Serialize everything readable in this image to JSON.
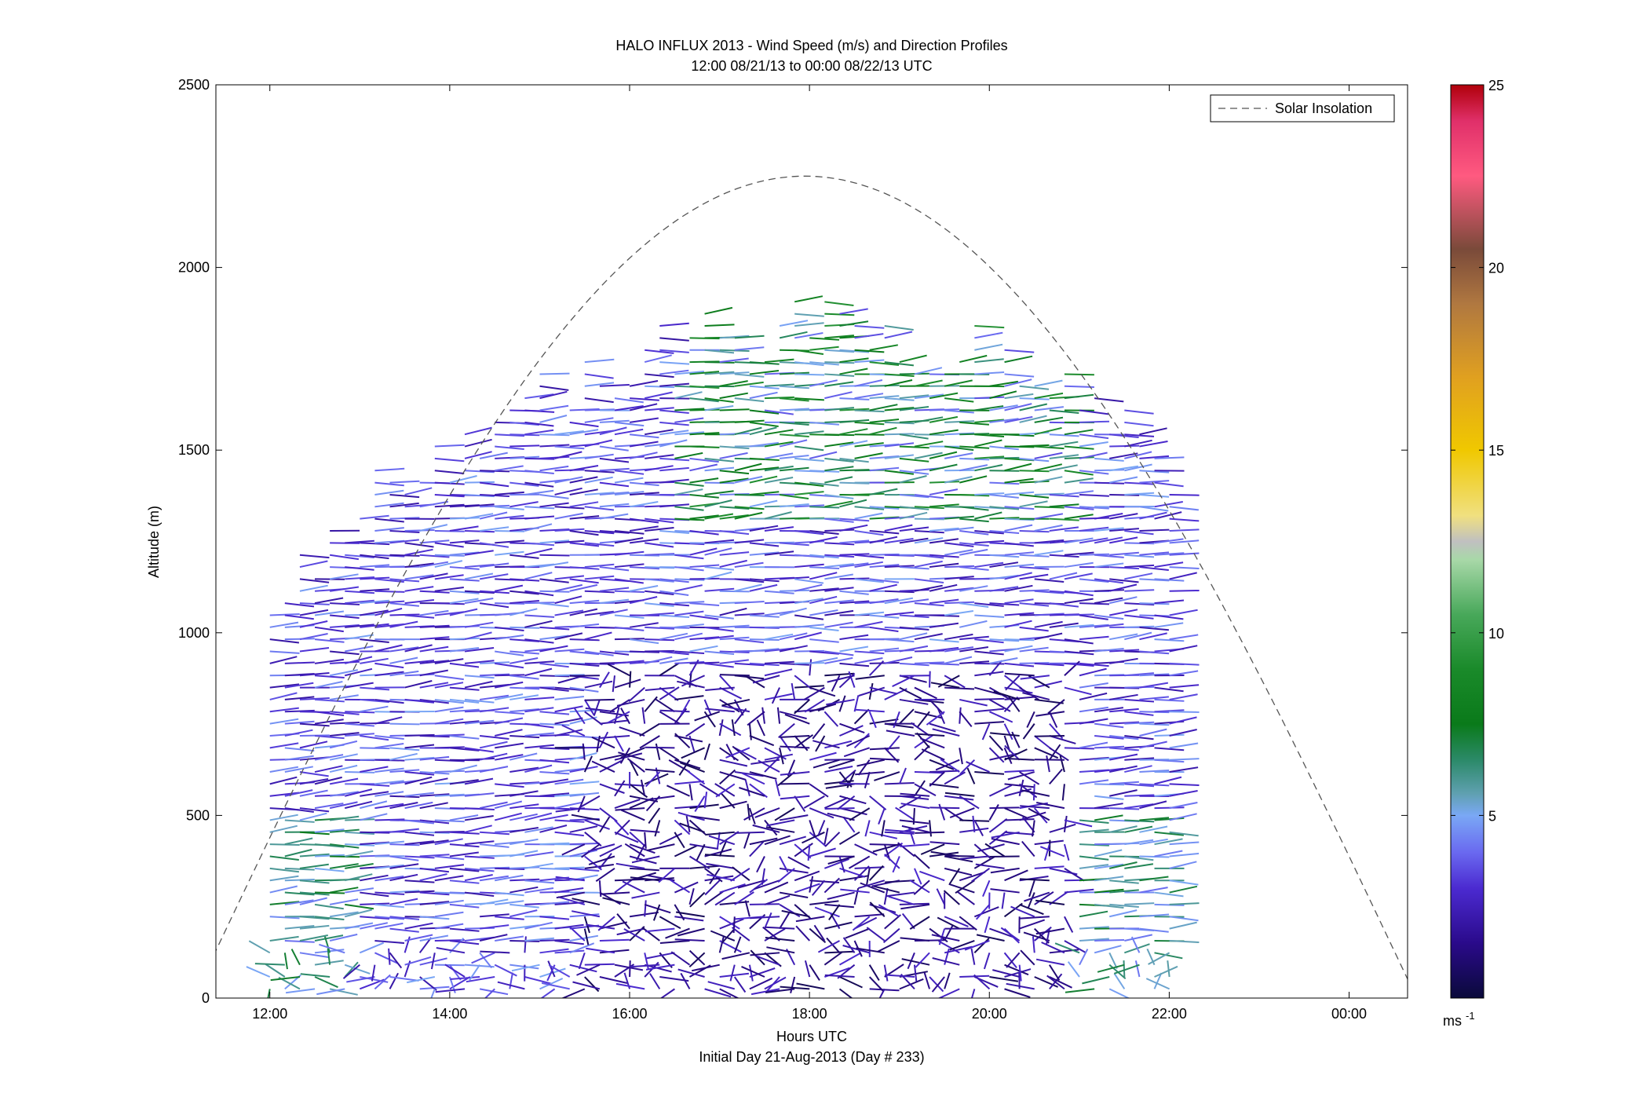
{
  "title_line1": "HALO INFLUX 2013 - Wind Speed (m/s) and Direction Profiles",
  "title_line2": "12:00 08/21/13 to 00:00 08/22/13  UTC",
  "xlabel": "Hours UTC",
  "footer": "Initial Day 21-Aug-2013 (Day # 233)",
  "ylabel": "Altitude (m)",
  "legend_label": "Solar Insolation",
  "colorbar_unit": "ms",
  "colorbar_unit_exp": "-1",
  "colors": {
    "insolation_line": "#555555",
    "axes": "#000000"
  },
  "chart_data": {
    "type": "quiver",
    "title": "HALO INFLUX 2013 - Wind Speed (m/s) and Direction Profiles",
    "subtitle": "12:00 08/21/13 to 00:00 08/22/13  UTC",
    "xlabel": "Hours UTC",
    "ylabel": "Altitude (m)",
    "xlim_hours": [
      11.4,
      24.65
    ],
    "ylim": [
      0,
      2500
    ],
    "x_ticks": [
      {
        "hour": 12,
        "label": "12:00"
      },
      {
        "hour": 14,
        "label": "14:00"
      },
      {
        "hour": 16,
        "label": "16:00"
      },
      {
        "hour": 18,
        "label": "18:00"
      },
      {
        "hour": 20,
        "label": "20:00"
      },
      {
        "hour": 22,
        "label": "22:00"
      },
      {
        "hour": 24,
        "label": "00:00"
      }
    ],
    "y_ticks": [
      0,
      500,
      1000,
      1500,
      2000,
      2500
    ],
    "grid": false,
    "legend": {
      "position": "top-right",
      "entries": [
        "Solar Insolation"
      ]
    },
    "colorbar": {
      "min": 0,
      "max": 25,
      "unit": "ms-1",
      "ticks": [
        5,
        10,
        15,
        20,
        25
      ],
      "stops": [
        {
          "v": 0,
          "c": "#0a0a3a"
        },
        {
          "v": 1.5,
          "c": "#2a0a8a"
        },
        {
          "v": 3,
          "c": "#4b2ad0"
        },
        {
          "v": 4,
          "c": "#6a6af0"
        },
        {
          "v": 5,
          "c": "#7aa8f5"
        },
        {
          "v": 5.6,
          "c": "#5fa0b0"
        },
        {
          "v": 6.5,
          "c": "#2c8a6a"
        },
        {
          "v": 7.5,
          "c": "#0a7a1a"
        },
        {
          "v": 9,
          "c": "#1a8a2a"
        },
        {
          "v": 10.5,
          "c": "#48a85a"
        },
        {
          "v": 12,
          "c": "#a8d8a8"
        },
        {
          "v": 12.5,
          "c": "#c0c0c0"
        },
        {
          "v": 13.2,
          "c": "#f0e080"
        },
        {
          "v": 15,
          "c": "#f0c800"
        },
        {
          "v": 17,
          "c": "#e0a020"
        },
        {
          "v": 19,
          "c": "#b07840"
        },
        {
          "v": 20.5,
          "c": "#7a4a3a"
        },
        {
          "v": 22.5,
          "c": "#ff5a80"
        },
        {
          "v": 24,
          "c": "#e0306a"
        },
        {
          "v": 25,
          "c": "#b0000a"
        }
      ]
    },
    "solar_insolation": {
      "peak_hour": 17.9,
      "peak_altitude": 2250,
      "zero_hours": [
        11.15,
        24.75
      ]
    },
    "profiles": {
      "hours_start": 12.0,
      "hours_step": 0.1667,
      "count": 61,
      "altitude_step": 33,
      "description": "wind barbs at each profile time; direction in degrees, speed in m/s"
    }
  }
}
